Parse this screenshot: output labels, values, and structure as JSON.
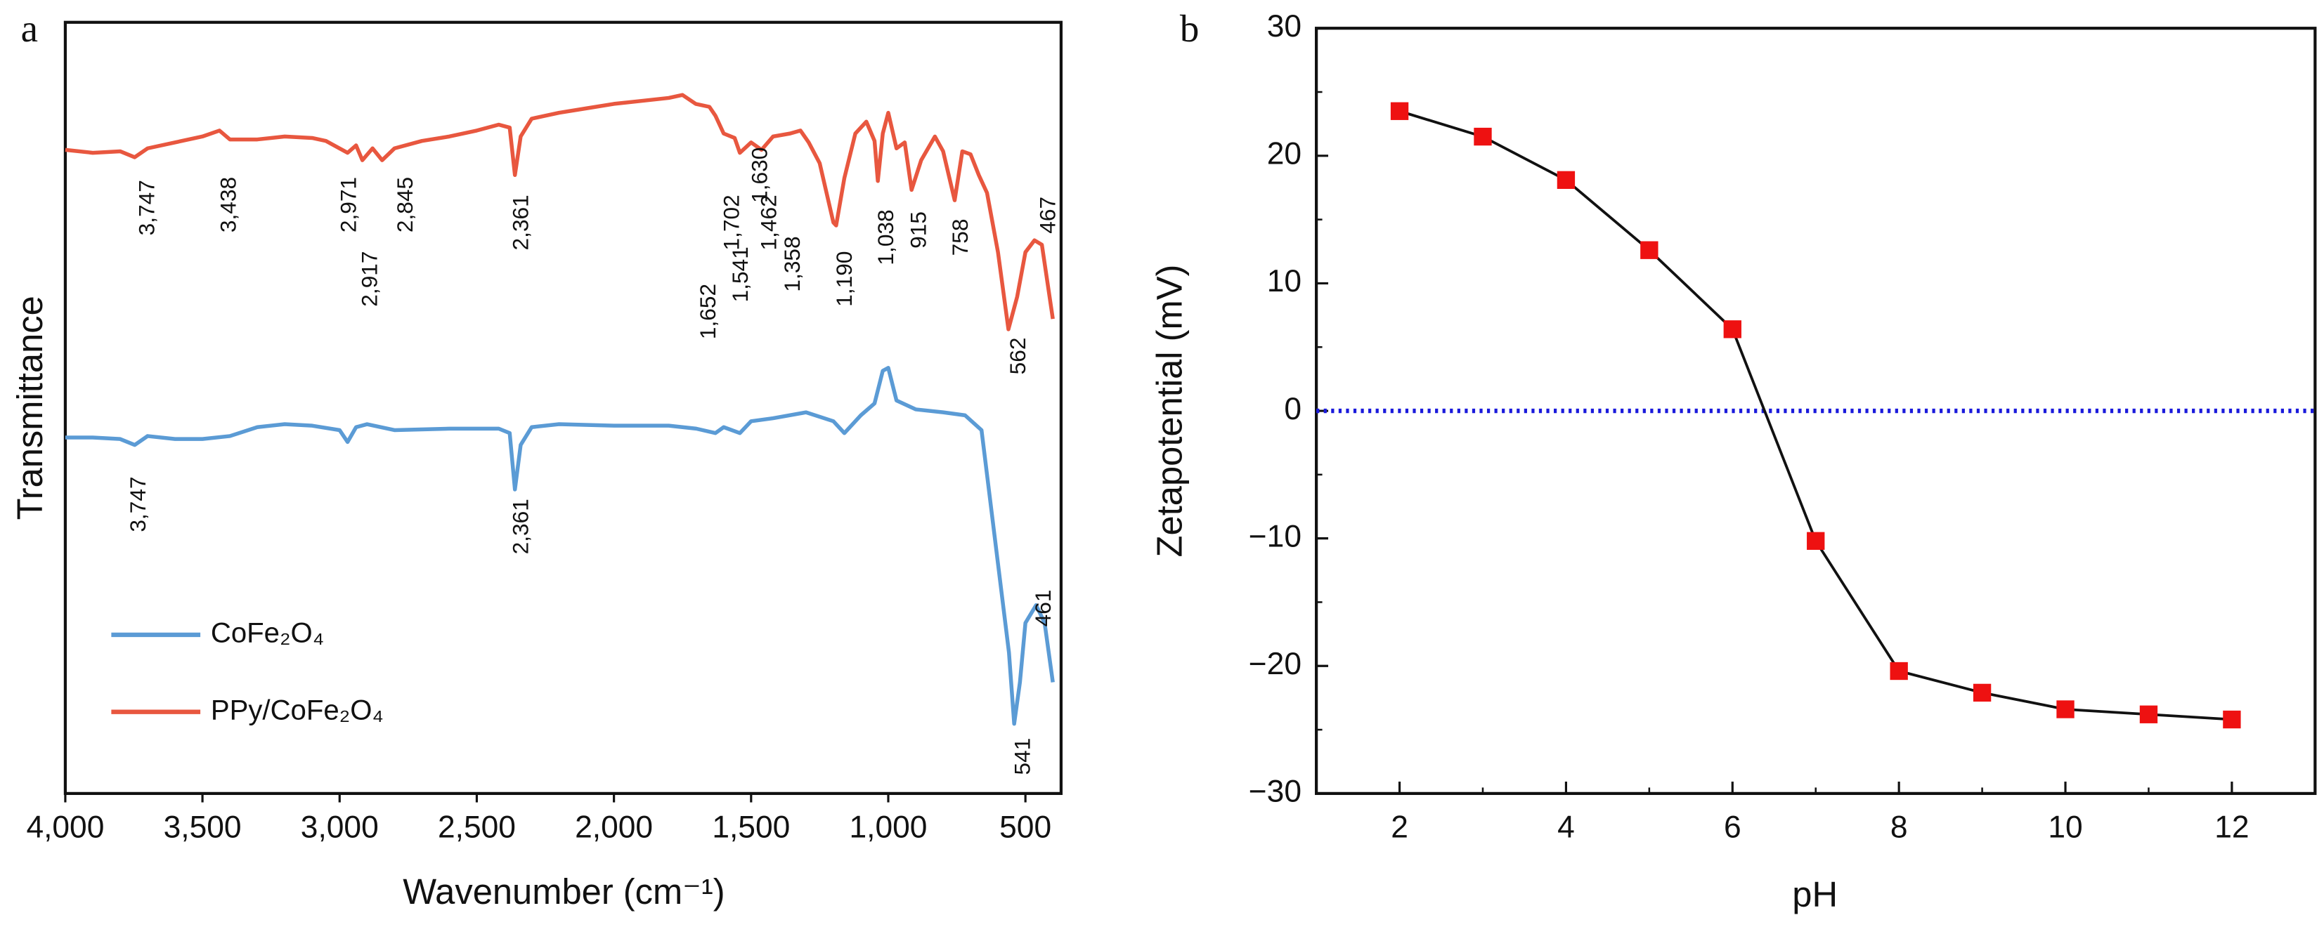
{
  "chart_data": [
    {
      "type": "line",
      "panel": "a",
      "x_label": "Wavenumber (cm⁻¹)",
      "y_label": "Transmittance",
      "xlim": [
        4000,
        370
      ],
      "ylim": [
        0,
        520
      ],
      "xticks": [
        {
          "value": 4000,
          "label": "4,000"
        },
        {
          "value": 3500,
          "label": "3,500"
        },
        {
          "value": 3000,
          "label": "3,000"
        },
        {
          "value": 2500,
          "label": "2,500"
        },
        {
          "value": 2000,
          "label": "2,000"
        },
        {
          "value": 1500,
          "label": "1,500"
        },
        {
          "value": 1000,
          "label": "1,000"
        },
        500
      ],
      "series": [
        {
          "name": "CoFe₂O₄",
          "color": "#5b9bd5",
          "x": [
            4000,
            3900,
            3800,
            3747,
            3700,
            3600,
            3500,
            3400,
            3300,
            3200,
            3100,
            3000,
            2971,
            2940,
            2900,
            2800,
            2600,
            2420,
            2380,
            2361,
            2340,
            2300,
            2200,
            2000,
            1800,
            1700,
            1630,
            1600,
            1541,
            1500,
            1420,
            1300,
            1200,
            1160,
            1100,
            1050,
            1020,
            1000,
            970,
            900,
            800,
            720,
            660,
            640,
            600,
            560,
            541,
            520,
            500,
            461,
            430,
            400
          ],
          "values": [
            240,
            240,
            239,
            235,
            241,
            239,
            239,
            241,
            247,
            249,
            248,
            245,
            237,
            247,
            249,
            245,
            246,
            246,
            243,
            205,
            235,
            247,
            249,
            248,
            248,
            246,
            243,
            247,
            243,
            251,
            253,
            257,
            251,
            243,
            255,
            263,
            285,
            287,
            265,
            259,
            257,
            255,
            245,
            215,
            155,
            95,
            47,
            75,
            115,
            127,
            115,
            75
          ]
        },
        {
          "name": "PPy/CoFe₂O₄",
          "color": "#e8573f",
          "x": [
            4000,
            3900,
            3800,
            3747,
            3700,
            3600,
            3500,
            3438,
            3400,
            3300,
            3200,
            3100,
            3050,
            2971,
            2940,
            2917,
            2880,
            2845,
            2800,
            2700,
            2600,
            2500,
            2420,
            2380,
            2361,
            2340,
            2300,
            2200,
            2100,
            2000,
            1900,
            1800,
            1750,
            1702,
            1652,
            1630,
            1600,
            1560,
            1541,
            1500,
            1462,
            1420,
            1358,
            1320,
            1290,
            1250,
            1200,
            1190,
            1160,
            1120,
            1080,
            1050,
            1038,
            1020,
            1000,
            970,
            940,
            915,
            880,
            830,
            800,
            758,
            730,
            700,
            670,
            640,
            600,
            562,
            530,
            500,
            467,
            440,
            400
          ],
          "values": [
            434,
            432,
            433,
            429,
            435,
            439,
            443,
            447,
            441,
            441,
            443,
            442,
            440,
            432,
            437,
            427,
            435,
            427,
            435,
            440,
            443,
            447,
            451,
            449,
            417,
            443,
            455,
            459,
            462,
            465,
            467,
            469,
            471,
            465,
            463,
            457,
            445,
            442,
            432,
            439,
            434,
            443,
            445,
            447,
            439,
            425,
            385,
            383,
            415,
            445,
            453,
            440,
            413,
            445,
            459,
            435,
            439,
            407,
            427,
            443,
            433,
            400,
            433,
            431,
            417,
            405,
            365,
            313,
            335,
            365,
            373,
            370,
            320
          ]
        }
      ],
      "annotations": [
        "3,747",
        "3,438",
        "2,971",
        "2,917",
        "2,845",
        "2,361",
        "1,652",
        "1,702",
        "1,630",
        "1,541",
        "1,462",
        "1,358",
        "1,190",
        "1,038",
        "915",
        "758",
        "562",
        "467",
        "3,747",
        "2,361",
        "541",
        "461"
      ]
    },
    {
      "type": "line",
      "panel": "b",
      "x_label": "pH",
      "y_label": "Zetapotential (mV)",
      "x": [
        2,
        3,
        4,
        5,
        6,
        7,
        8,
        9,
        10,
        11,
        12
      ],
      "xlim": [
        1,
        13
      ],
      "ylim": [
        -30,
        30
      ],
      "xticks": [
        2,
        4,
        6,
        8,
        10,
        12
      ],
      "xminorticks": [
        3,
        5,
        7,
        9,
        11
      ],
      "yticks": [
        {
          "value": -30,
          "label": "−30"
        },
        {
          "value": -20,
          "label": "−20"
        },
        {
          "value": -10,
          "label": "−10"
        },
        0,
        10,
        20,
        30
      ],
      "yminorticks": [
        -25,
        -15,
        -5,
        5,
        15,
        25
      ],
      "reference_line": {
        "value": 0,
        "color": "#1a1adb"
      },
      "series": [
        {
          "color": "#111111",
          "marker_color": "#ee1111",
          "values": [
            23.5,
            21.5,
            18.1,
            12.6,
            6.4,
            -10.2,
            -20.4,
            -22.1,
            -23.4,
            -23.8,
            -24.2
          ]
        }
      ]
    }
  ]
}
